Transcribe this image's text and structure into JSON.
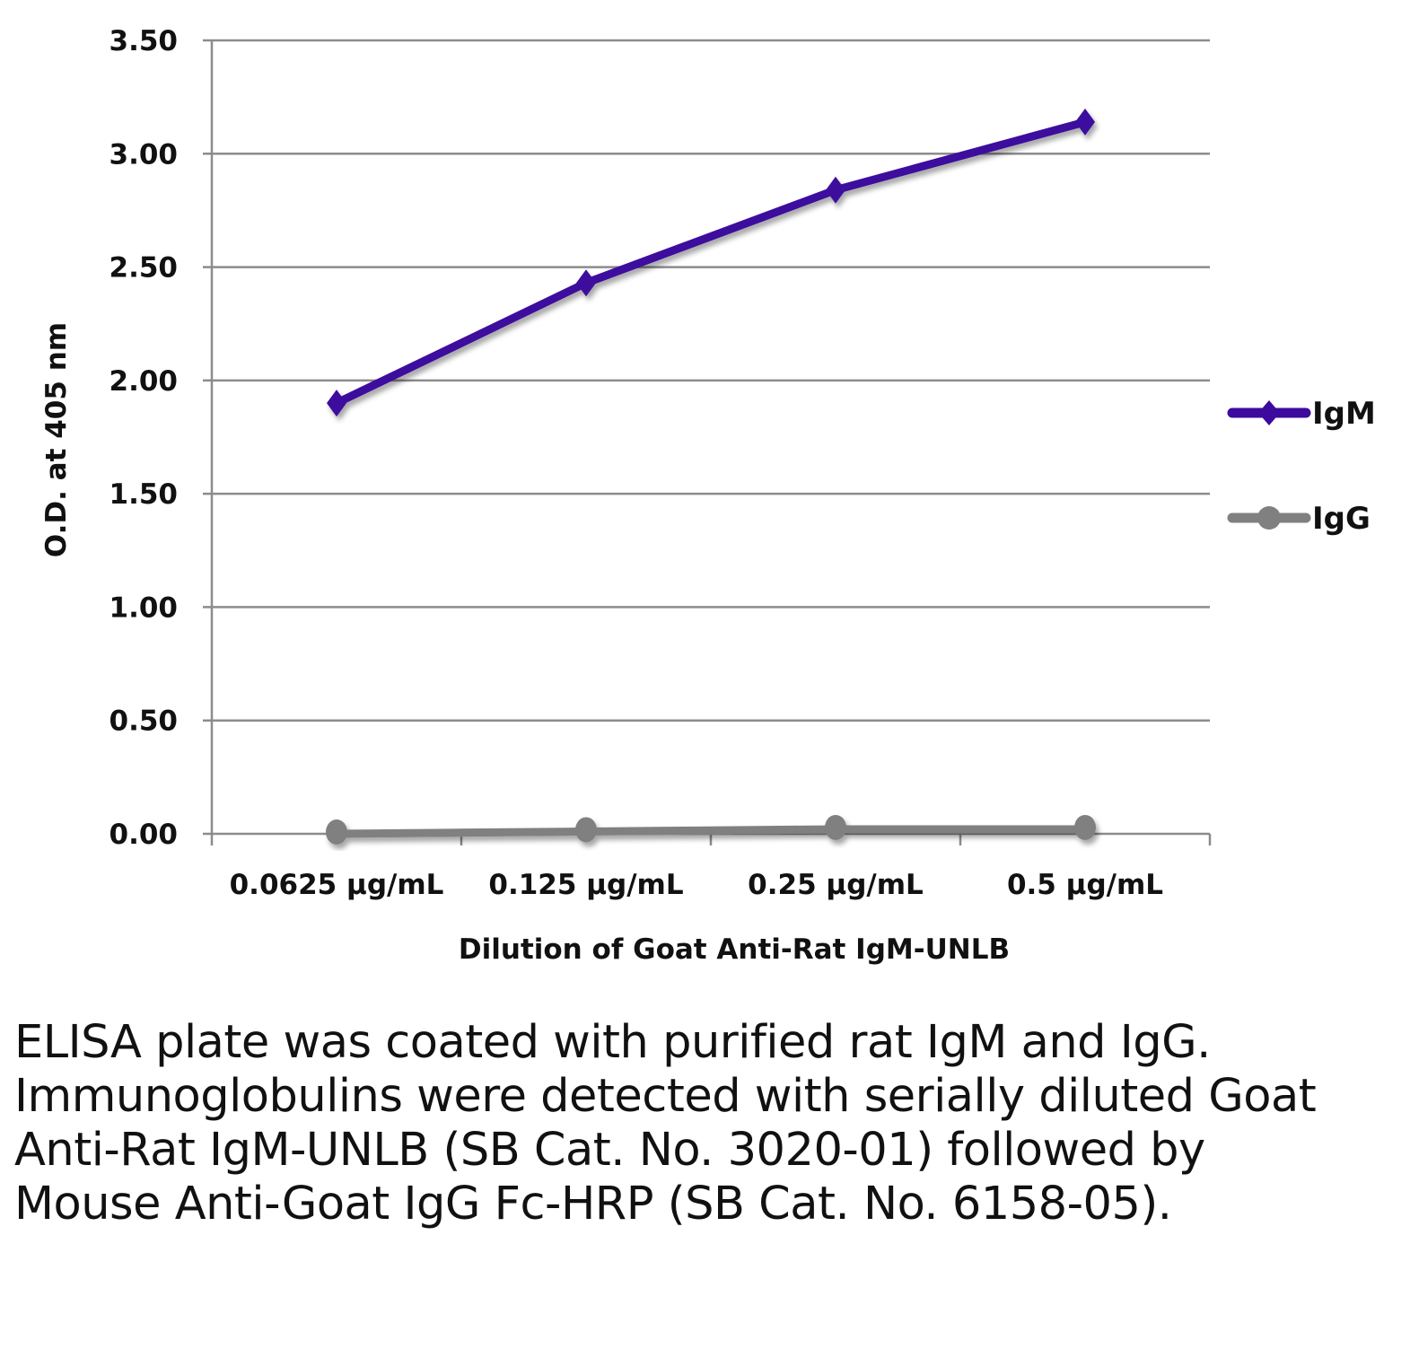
{
  "chart_data": {
    "type": "line",
    "title": "",
    "xlabel": "Dilution of Goat Anti-Rat IgM-UNLB",
    "ylabel": "O.D. at 405 nm",
    "categories": [
      "0.0625 µg/mL",
      "0.125 µg/mL",
      "0.25 µg/mL",
      "0.5 µg/mL"
    ],
    "ylim": [
      0,
      3.5
    ],
    "yticks": [
      "0.00",
      "0.50",
      "1.00",
      "1.50",
      "2.00",
      "2.50",
      "3.00",
      "3.50"
    ],
    "grid": true,
    "legend_position": "right",
    "series": [
      {
        "name": "IgM",
        "values": [
          1.9,
          2.43,
          2.84,
          3.14
        ],
        "color": "#3d0a9e",
        "marker": "diamond"
      },
      {
        "name": "IgG",
        "values": [
          0.0,
          0.01,
          0.02,
          0.02
        ],
        "color": "#808080",
        "marker": "circle"
      }
    ]
  },
  "caption": "ELISA plate was coated with purified rat IgM and IgG.  Immunoglobulins were detected with serially diluted Goat Anti-Rat IgM-UNLB (SB Cat. No. 3020-01) followed by Mouse Anti-Goat IgG Fc-HRP (SB Cat. No. 6158-05)."
}
